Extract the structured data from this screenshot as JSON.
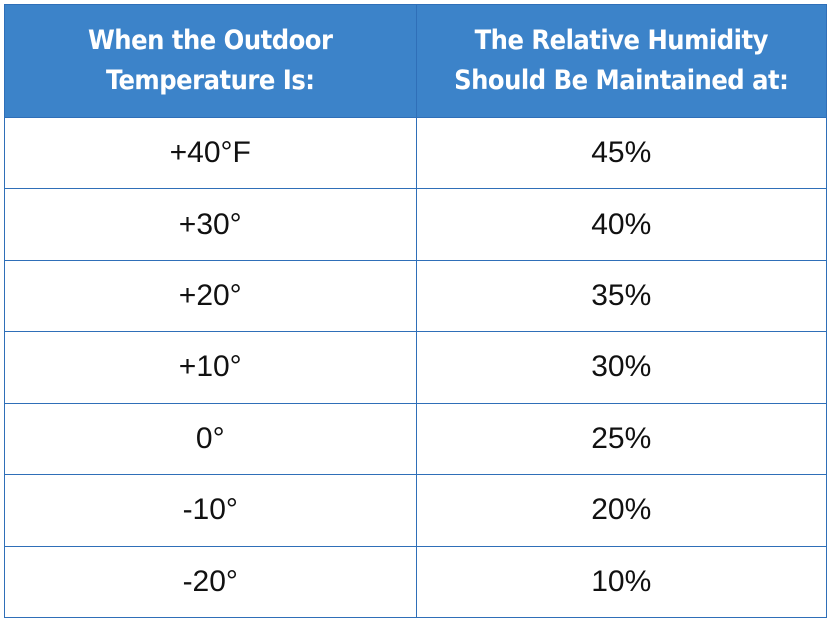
{
  "table": {
    "headers": [
      {
        "line1": "When the Outdoor",
        "line2": "Temperature Is:"
      },
      {
        "line1": "The Relative Humidity",
        "line2": "Should Be Maintained at:"
      }
    ],
    "rows": [
      {
        "temperature": "+40°F",
        "humidity": "45%"
      },
      {
        "temperature": "+30°",
        "humidity": "40%"
      },
      {
        "temperature": "+20°",
        "humidity": "35%"
      },
      {
        "temperature": "+10°",
        "humidity": "30%"
      },
      {
        "temperature": "0°",
        "humidity": "25%"
      },
      {
        "temperature": "-10°",
        "humidity": "20%"
      },
      {
        "temperature": "-20°",
        "humidity": "10%"
      }
    ]
  },
  "colors": {
    "header_background": "#3c83c9",
    "header_text": "#ffffff",
    "grid_lines": "#2f6fb8",
    "body_text": "#111111"
  }
}
